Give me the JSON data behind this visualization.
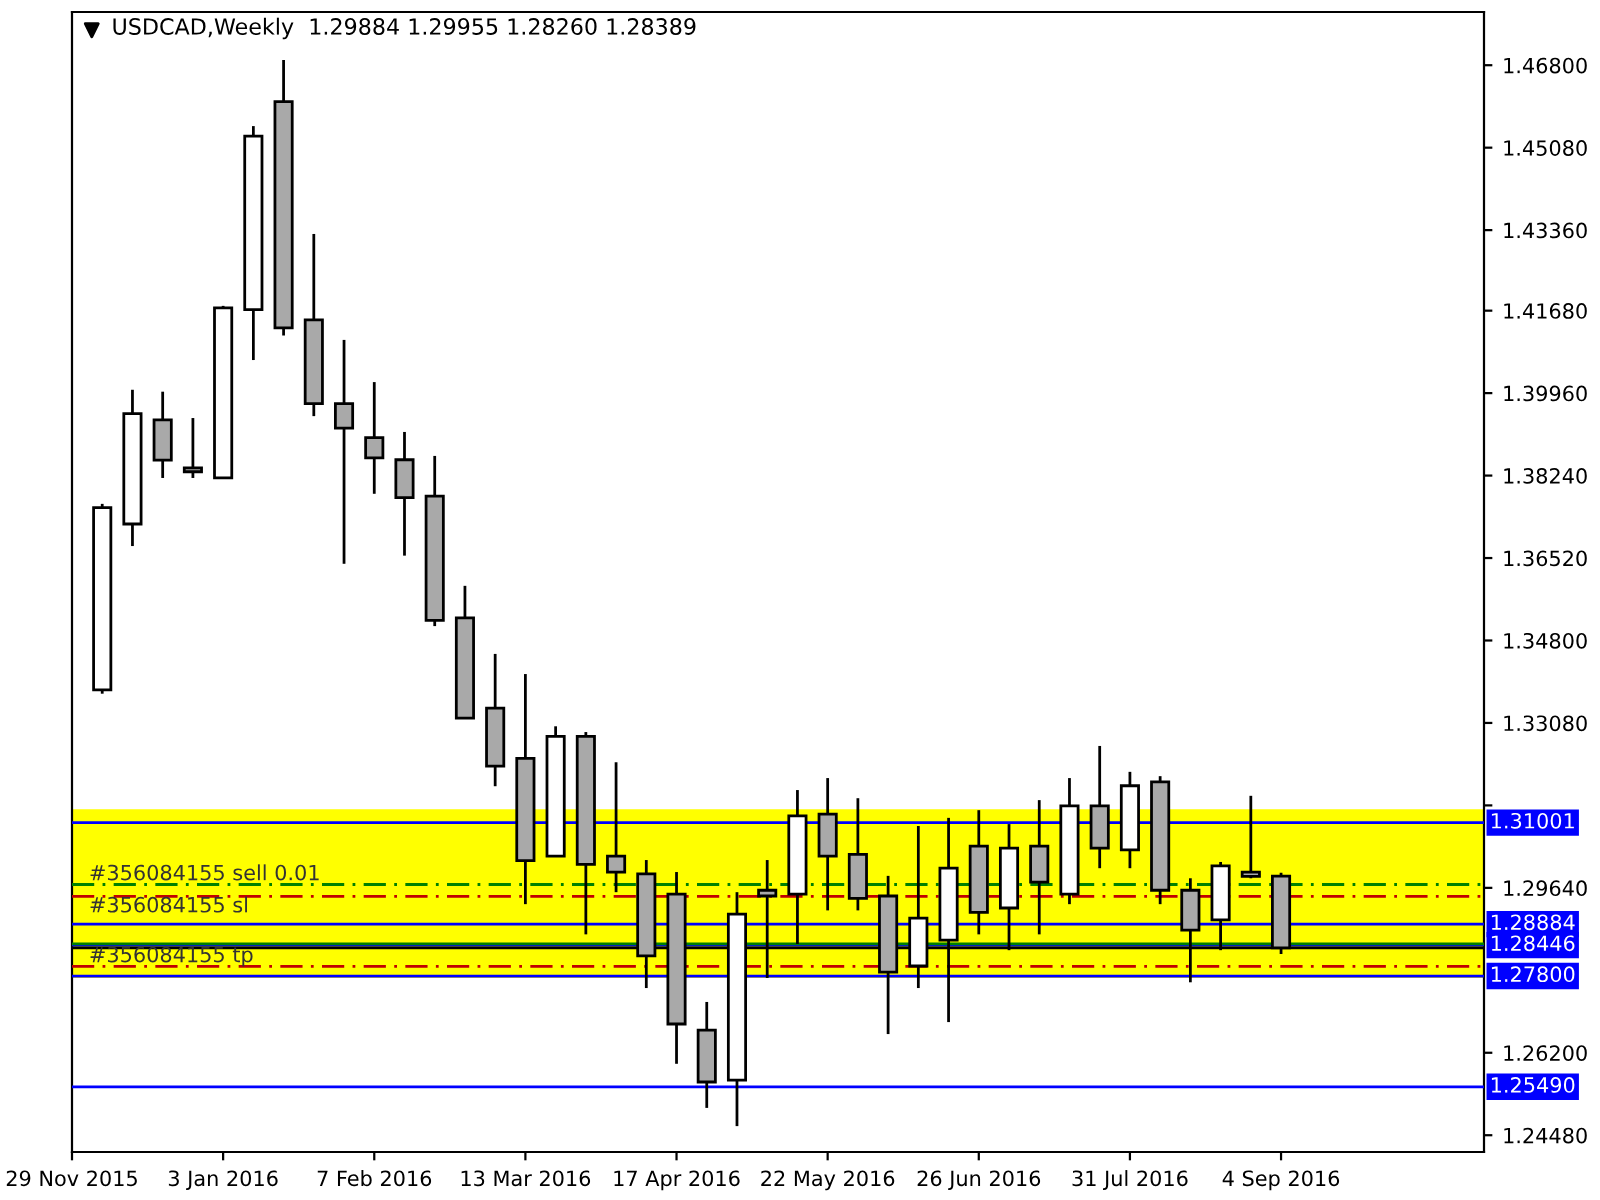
{
  "chart_data": {
    "type": "candlestick",
    "title": "USDCAD,Weekly  1.29884 1.29955 1.28260 1.28389",
    "x": [
      "2015-12-06",
      "2015-12-13",
      "2015-12-20",
      "2015-12-27",
      "2016-01-03",
      "2016-01-10",
      "2016-01-17",
      "2016-01-24",
      "2016-01-31",
      "2016-02-07",
      "2016-02-14",
      "2016-02-21",
      "2016-02-28",
      "2016-03-06",
      "2016-03-13",
      "2016-03-20",
      "2016-03-27",
      "2016-04-03",
      "2016-04-10",
      "2016-04-17",
      "2016-04-24",
      "2016-05-01",
      "2016-05-08",
      "2016-05-15",
      "2016-05-22",
      "2016-05-29",
      "2016-06-05",
      "2016-06-12",
      "2016-06-19",
      "2016-06-26",
      "2016-07-03",
      "2016-07-10",
      "2016-07-17",
      "2016-07-24",
      "2016-07-31",
      "2016-08-07",
      "2016-08-14",
      "2016-08-21",
      "2016-08-28",
      "2016-09-04"
    ],
    "ohlc": [
      [
        1.3377,
        1.3765,
        1.3369,
        1.3757
      ],
      [
        1.3723,
        1.4003,
        1.3677,
        1.3953
      ],
      [
        1.394,
        1.3999,
        1.3819,
        1.3856
      ],
      [
        1.384,
        1.3944,
        1.3819,
        1.3832
      ],
      [
        1.3819,
        1.4178,
        1.3819,
        1.4174
      ],
      [
        1.417,
        1.4553,
        1.4065,
        1.4532
      ],
      [
        1.4604,
        1.4691,
        1.4116,
        1.4132
      ],
      [
        1.4149,
        1.4328,
        1.3948,
        1.3974
      ],
      [
        1.3974,
        1.4107,
        1.364,
        1.3923
      ],
      [
        1.3903,
        1.4019,
        1.3786,
        1.3861
      ],
      [
        1.3857,
        1.3915,
        1.3657,
        1.3778
      ],
      [
        1.3781,
        1.3865,
        1.351,
        1.3522
      ],
      [
        1.3527,
        1.3594,
        1.3318,
        1.3318
      ],
      [
        1.3339,
        1.3452,
        1.3176,
        1.3218
      ],
      [
        1.3234,
        1.341,
        1.293,
        1.3021
      ],
      [
        1.303,
        1.3301,
        1.303,
        1.328
      ],
      [
        1.328,
        1.3289,
        1.2867,
        1.3013
      ],
      [
        1.303,
        1.3226,
        1.2955,
        1.2997
      ],
      [
        1.2993,
        1.3022,
        1.2755,
        1.2822
      ],
      [
        1.2951,
        1.2997,
        1.2597,
        1.268
      ],
      [
        1.2667,
        1.2726,
        1.2505,
        1.2559
      ],
      [
        1.2563,
        1.2955,
        1.2467,
        1.2909
      ],
      [
        1.2959,
        1.3022,
        1.2776,
        1.2947
      ],
      [
        1.2951,
        1.3168,
        1.2847,
        1.3114
      ],
      [
        1.3118,
        1.3193,
        1.2917,
        1.303
      ],
      [
        1.3034,
        1.3151,
        1.2917,
        1.2942
      ],
      [
        1.2947,
        1.2989,
        1.2659,
        1.2788
      ],
      [
        1.2801,
        1.3093,
        1.2755,
        1.2901
      ],
      [
        1.2855,
        1.311,
        1.2684,
        1.3005
      ],
      [
        1.3051,
        1.3126,
        1.2867,
        1.2913
      ],
      [
        1.2922,
        1.3097,
        1.2834,
        1.3047
      ],
      [
        1.3051,
        1.3147,
        1.2867,
        1.2976
      ],
      [
        1.2951,
        1.3193,
        1.293,
        1.3135
      ],
      [
        1.3135,
        1.326,
        1.3005,
        1.3047
      ],
      [
        1.3043,
        1.3206,
        1.3005,
        1.3177
      ],
      [
        1.3185,
        1.3197,
        1.293,
        1.2959
      ],
      [
        1.2959,
        1.2984,
        1.2767,
        1.2876
      ],
      [
        1.2897,
        1.3018,
        1.2834,
        1.301
      ],
      [
        1.2997,
        1.3156,
        1.2984,
        1.2988
      ],
      [
        1.29884,
        1.29955,
        1.2826,
        1.28389
      ]
    ],
    "colors": [
      "#ffffff",
      "#ffffff",
      "#a9a9a9",
      "#a9a9a9",
      "#ffffff",
      "#ffffff",
      "#a9a9a9",
      "#a9a9a9",
      "#a9a9a9",
      "#a9a9a9",
      "#a9a9a9",
      "#a9a9a9",
      "#a9a9a9",
      "#a9a9a9",
      "#a9a9a9",
      "#ffffff",
      "#a9a9a9",
      "#a9a9a9",
      "#a9a9a9",
      "#a9a9a9",
      "#a9a9a9",
      "#ffffff",
      "#a9a9a9",
      "#ffffff",
      "#a9a9a9",
      "#a9a9a9",
      "#a9a9a9",
      "#ffffff",
      "#ffffff",
      "#a9a9a9",
      "#ffffff",
      "#a9a9a9",
      "#ffffff",
      "#a9a9a9",
      "#ffffff",
      "#a9a9a9",
      "#a9a9a9",
      "#ffffff",
      "#a9a9a9",
      "#a9a9a9"
    ],
    "xlim": [
      "2015-11-29",
      "2016-10-21"
    ],
    "xticks": [
      {
        "value": "2015-11-29",
        "label": "29 Nov 2015"
      },
      {
        "value": "2016-01-03",
        "label": "3 Jan 2016"
      },
      {
        "value": "2016-02-07",
        "label": "7 Feb 2016"
      },
      {
        "value": "2016-03-13",
        "label": "13 Mar 2016"
      },
      {
        "value": "2016-04-17",
        "label": "17 Apr 2016"
      },
      {
        "value": "2016-05-22",
        "label": "22 May 2016"
      },
      {
        "value": "2016-06-26",
        "label": "26 Jun 2016"
      },
      {
        "value": "2016-07-31",
        "label": "31 Jul 2016"
      },
      {
        "value": "2016-09-04",
        "label": "4 Sep 2016"
      }
    ],
    "ylim": [
      1.2413,
      1.4791
    ],
    "yticks": [
      {
        "value": 1.468,
        "label": "1.46800"
      },
      {
        "value": 1.4508,
        "label": "1.45080"
      },
      {
        "value": 1.4336,
        "label": "1.43360"
      },
      {
        "value": 1.4168,
        "label": "1.41680"
      },
      {
        "value": 1.3996,
        "label": "1.39960"
      },
      {
        "value": 1.3824,
        "label": "1.38240"
      },
      {
        "value": 1.3652,
        "label": "1.36520"
      },
      {
        "value": 1.348,
        "label": "1.34800"
      },
      {
        "value": 1.3308,
        "label": "1.33080"
      },
      {
        "value": 1.3136,
        "label": null
      },
      {
        "value": 1.2964,
        "label": "1.29640"
      },
      {
        "value": 1.262,
        "label": "1.26200"
      },
      {
        "value": 1.2448,
        "label": "1.24480"
      }
    ],
    "bands": [
      {
        "axis": "y",
        "from": 1.2776,
        "to": 1.3128,
        "color": "#ffff00"
      }
    ],
    "ref_lines": [
      {
        "axis": "y",
        "value": 1.31001,
        "label": "1.31001",
        "color": "#0000ff",
        "line_style": "solid"
      },
      {
        "axis": "y",
        "value": 1.28884,
        "label": "1.28884",
        "color": "#0000ff",
        "line_style": "solid"
      },
      {
        "axis": "y",
        "value": 1.28446,
        "label": "1.28446",
        "color": "#0000ff",
        "line_style": "solid"
      },
      {
        "axis": "y",
        "value": 1.278,
        "label": "1.27800",
        "color": "#0000ff",
        "line_style": "solid"
      },
      {
        "axis": "y",
        "value": 1.2549,
        "label": "1.25490",
        "color": "#0000ff",
        "line_style": "solid"
      },
      {
        "axis": "y",
        "value": 1.2847,
        "color": "#008000",
        "line_style": "solid"
      },
      {
        "axis": "y",
        "value": 1.28389,
        "color": "#000000",
        "line_style": "solid"
      },
      {
        "axis": "y",
        "value": 1.2971,
        "label": "#356084155 sell 0.01",
        "color": "#008000",
        "line_style": "dashdot"
      },
      {
        "axis": "y",
        "value": 1.2946,
        "label": "#356084155 sl",
        "color": "#c00000",
        "line_style": "dashdot"
      },
      {
        "axis": "y",
        "value": 1.28,
        "label": "#356084155 tp",
        "color": "#c00000",
        "line_style": "dashdot"
      }
    ],
    "grid": false,
    "legend": false
  }
}
